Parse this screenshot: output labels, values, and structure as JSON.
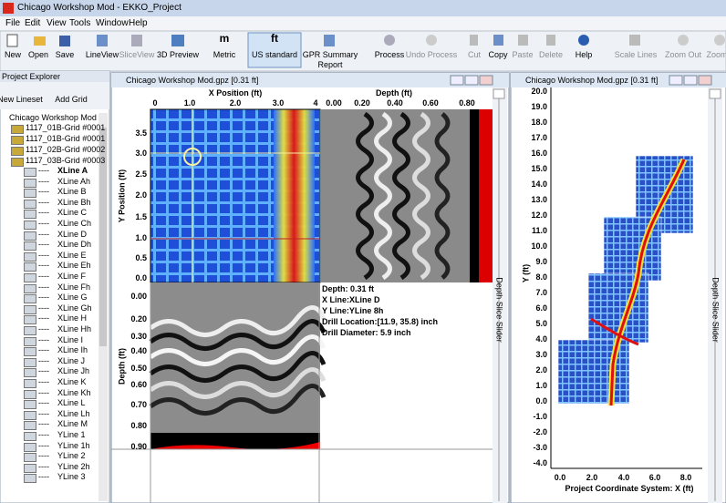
{
  "window": {
    "title": "Chicago Workshop Mod - EKKO_Project"
  },
  "menu": [
    "File",
    "Edit",
    "View",
    "Tools",
    "Window",
    "Help"
  ],
  "toolbar": {
    "icons": {
      "metric": "m",
      "us": "ft"
    },
    "buttons": [
      "New",
      "Open",
      "Save",
      "LineView",
      "SliceView",
      "3D Preview",
      "Metric",
      "US standard",
      "GPR Summary Report",
      "Process",
      "Undo Process",
      "Cut",
      "Copy",
      "Paste",
      "Delete",
      "Help",
      "Scale Lines",
      "Zoom Out",
      "Zoom"
    ]
  },
  "explorer": {
    "title": "Project Explorer",
    "buttons": [
      "New Lineset",
      "Add Grid"
    ],
    "root": "Chicago Workshop Mod",
    "grids": [
      "1117_01B-Grid #0001",
      "1117_01B-Grid #0001",
      "1117_02B-Grid #0002",
      "1117_03B-Grid #0003"
    ],
    "line_prefix": "----",
    "lines": [
      "XLine A",
      "XLine Ah",
      "XLine B",
      "XLine Bh",
      "XLine C",
      "XLine Ch",
      "XLine D",
      "XLine Dh",
      "XLine E",
      "XLine Eh",
      "XLine F",
      "XLine Fh",
      "XLine G",
      "XLine Gh",
      "XLine H",
      "XLine Hh",
      "XLine I",
      "XLine Ih",
      "XLine J",
      "XLine Jh",
      "XLine K",
      "XLine Kh",
      "XLine L",
      "XLine Lh",
      "XLine M",
      "YLine 1",
      "YLine 1h",
      "YLine 2",
      "YLine 2h",
      "YLine 3"
    ]
  },
  "slice_window": {
    "title": "Chicago Workshop Mod.gpz [0.31 ft]",
    "x_label": "X Position (ft)",
    "x_ticks": [
      "0",
      "1.0",
      "2.0",
      "3.0",
      "4"
    ],
    "y_label": "Y Position (ft)",
    "y_ticks": [
      "3.5",
      "3.0",
      "2.5",
      "2.0",
      "1.5",
      "1.0",
      "0.5",
      "0.0"
    ],
    "depth_label": "Depth (ft)",
    "depth_ticks": [
      "0.00",
      "0.20",
      "0.40",
      "0.60",
      "0.80"
    ],
    "profile_label": "Depth (ft)",
    "profile_ticks": [
      "0.00",
      "0.20",
      "0.30",
      "0.40",
      "0.50",
      "0.60",
      "0.70",
      "0.80",
      "0.90"
    ],
    "info": [
      "Depth: 0.31 ft",
      "X Line:XLine D",
      "Y Line:YLine 8h",
      "Drill Location:[11.9, 35.8) inch",
      "Drill Diameter: 5.9 inch"
    ],
    "slider": "Depth Slice Slider"
  },
  "site_window": {
    "title": "Chicago Workshop Mod.gpz [0.31 ft]",
    "y_label": "Y (ft)",
    "y_ticks": [
      "20.0",
      "19.0",
      "18.0",
      "17.0",
      "16.0",
      "15.0",
      "14.0",
      "13.0",
      "12.0",
      "11.0",
      "10.0",
      "9.0",
      "8.0",
      "7.0",
      "6.0",
      "5.0",
      "4.0",
      "3.0",
      "2.0",
      "1.0",
      "0.0",
      "-1.0",
      "-2.0",
      "-3.0",
      "-4.0"
    ],
    "x_label": "Project Coordinate System: X (ft)",
    "x_ticks": [
      "0.0",
      "2.0",
      "4.0",
      "6.0",
      "8.0"
    ],
    "slider": "Depth Slice Slider"
  }
}
